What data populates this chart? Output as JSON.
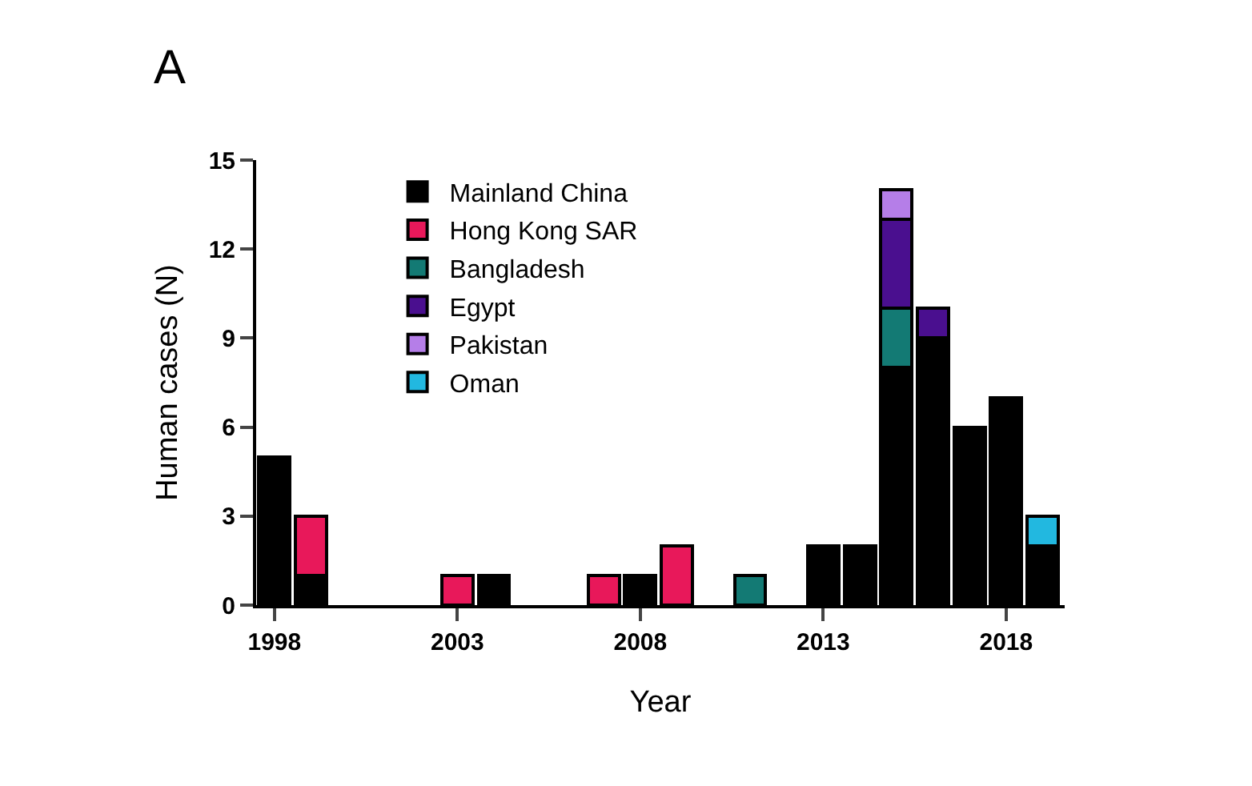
{
  "chart_data": {
    "type": "bar",
    "stacked": true,
    "xlabel": "Year",
    "ylabel": "Human cases (N)",
    "annotations": [
      "A"
    ],
    "x": [
      1998,
      1999,
      2003,
      2004,
      2007,
      2008,
      2009,
      2011,
      2013,
      2014,
      2015,
      2016,
      2017,
      2018,
      2019
    ],
    "series": [
      {
        "name": "Mainland China",
        "color": "#000000",
        "values": [
          5,
          1,
          null,
          1,
          null,
          1,
          null,
          null,
          2,
          2,
          8,
          9,
          6,
          7,
          2
        ]
      },
      {
        "name": "Hong Kong SAR",
        "color": "#e8185a",
        "values": [
          null,
          2,
          1,
          null,
          1,
          null,
          2,
          null,
          null,
          null,
          null,
          null,
          null,
          null,
          null
        ]
      },
      {
        "name": "Bangladesh",
        "color": "#137a74",
        "values": [
          null,
          null,
          null,
          null,
          null,
          null,
          null,
          1,
          null,
          null,
          2,
          null,
          null,
          null,
          null
        ]
      },
      {
        "name": "Egypt",
        "color": "#4a0f8f",
        "values": [
          null,
          null,
          null,
          null,
          null,
          null,
          null,
          null,
          null,
          null,
          3,
          1,
          null,
          null,
          null
        ]
      },
      {
        "name": "Pakistan",
        "color": "#b57ee8",
        "values": [
          null,
          null,
          null,
          null,
          null,
          null,
          null,
          null,
          null,
          null,
          1,
          null,
          null,
          null,
          null
        ]
      },
      {
        "name": "Oman",
        "color": "#22b8e0",
        "values": [
          null,
          null,
          null,
          null,
          null,
          null,
          null,
          null,
          null,
          null,
          null,
          null,
          null,
          null,
          1
        ]
      }
    ],
    "xlim": [
      1997.5,
      2019.6
    ],
    "xticks": [
      1998,
      2003,
      2008,
      2013,
      2018
    ],
    "ylim": [
      0,
      15
    ],
    "yticks": [
      0,
      3,
      6,
      9,
      12,
      15
    ],
    "grid": false,
    "legend": "top left"
  }
}
